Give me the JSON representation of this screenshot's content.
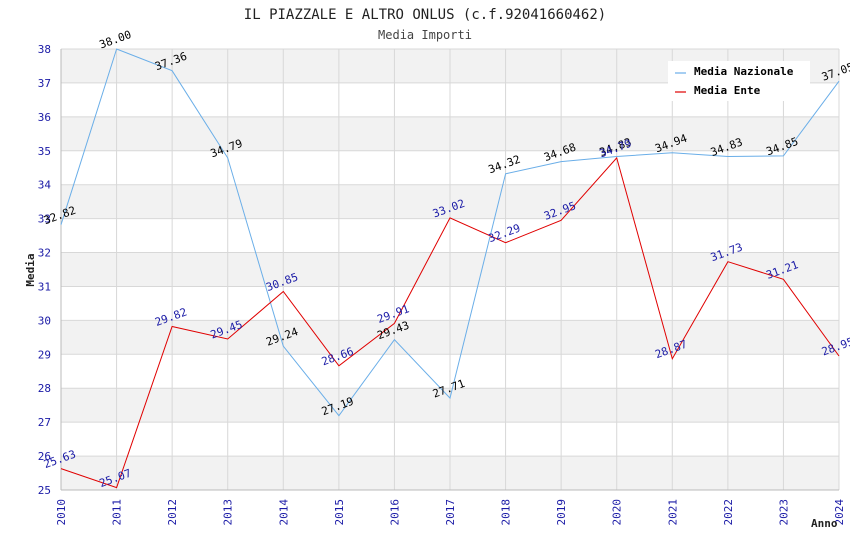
{
  "chart_data": {
    "type": "line",
    "title": "IL PIAZZALE E ALTRO ONLUS (c.f.92041660462)",
    "subtitle": "Media Importi",
    "xlabel": "Anno",
    "ylabel": "Media",
    "ylim": [
      25,
      38
    ],
    "y_ticks": [
      25,
      26,
      27,
      28,
      29,
      30,
      31,
      32,
      33,
      34,
      35,
      36,
      37,
      38
    ],
    "x": [
      2010,
      2011,
      2012,
      2013,
      2014,
      2015,
      2016,
      2017,
      2018,
      2019,
      2020,
      2021,
      2022,
      2023,
      2024
    ],
    "grid": true,
    "legend_position": "top-right",
    "series": [
      {
        "name": "Media Nazionale",
        "color": "#6aaee8",
        "label_color": "#000000",
        "values": [
          32.82,
          38.0,
          37.36,
          34.79,
          29.24,
          27.19,
          29.43,
          27.71,
          34.32,
          34.68,
          34.83,
          34.94,
          34.83,
          34.85,
          37.05
        ],
        "labels": [
          "32.82",
          "38.00",
          "37.36",
          "34.79",
          "29.24",
          "27.19",
          "29.43",
          "27.71",
          "34.32",
          "34.68",
          "34.83",
          "34.94",
          "34.83",
          "34.85",
          "37.05"
        ]
      },
      {
        "name": "Media Ente",
        "color": "#e00000",
        "label_color": "#1a1aa6",
        "values": [
          25.63,
          25.07,
          29.82,
          29.45,
          30.85,
          28.66,
          29.91,
          33.02,
          32.29,
          32.95,
          34.79,
          28.87,
          31.73,
          31.21,
          28.95
        ],
        "labels": [
          "25.63",
          "25.07",
          "29.82",
          "29.45",
          "30.85",
          "28.66",
          "29.91",
          "33.02",
          "32.29",
          "32.95",
          "34.79",
          "28.87",
          "31.73",
          "31.21",
          "28.95"
        ]
      }
    ]
  }
}
